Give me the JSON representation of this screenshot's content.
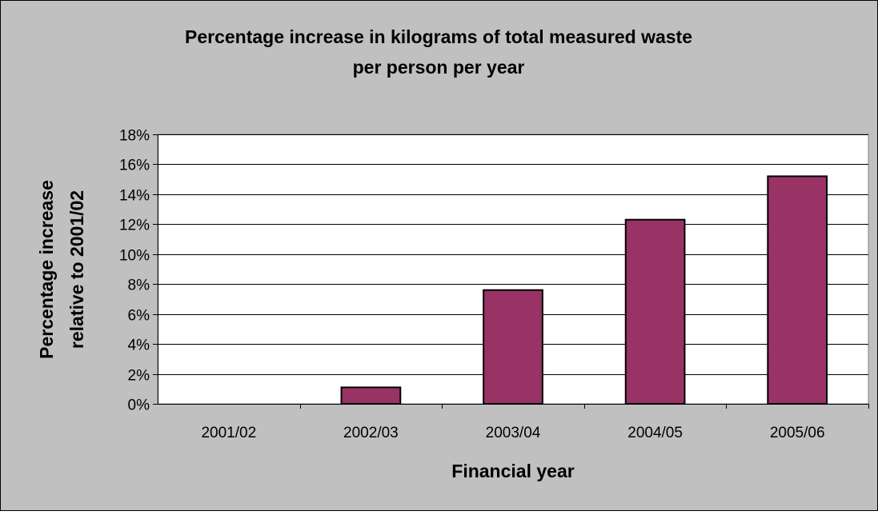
{
  "chart_data": {
    "type": "bar",
    "title_lines": [
      "Percentage increase in kilograms of total measured waste",
      "per person per year"
    ],
    "xlabel": "Financial year",
    "ylabel_lines": [
      "Percentage increase",
      "relative to 2001/02"
    ],
    "categories": [
      "2001/02",
      "2002/03",
      "2003/04",
      "2004/05",
      "2005/06"
    ],
    "values": [
      0,
      1.1,
      7.6,
      12.3,
      15.2
    ],
    "y_unit": "%",
    "ylim": [
      0,
      18
    ],
    "y_ticks": [
      0,
      2,
      4,
      6,
      8,
      10,
      12,
      14,
      16,
      18
    ],
    "y_tick_labels": [
      "0%",
      "2%",
      "4%",
      "6%",
      "8%",
      "10%",
      "12%",
      "14%",
      "16%",
      "18%"
    ],
    "grid": true,
    "legend": "none",
    "colors": {
      "bar_fill": "#993366",
      "bar_stroke": "#000000",
      "chart_background": "#c0c0c0",
      "plot_background": "#ffffff",
      "gridline": "#000000"
    }
  }
}
